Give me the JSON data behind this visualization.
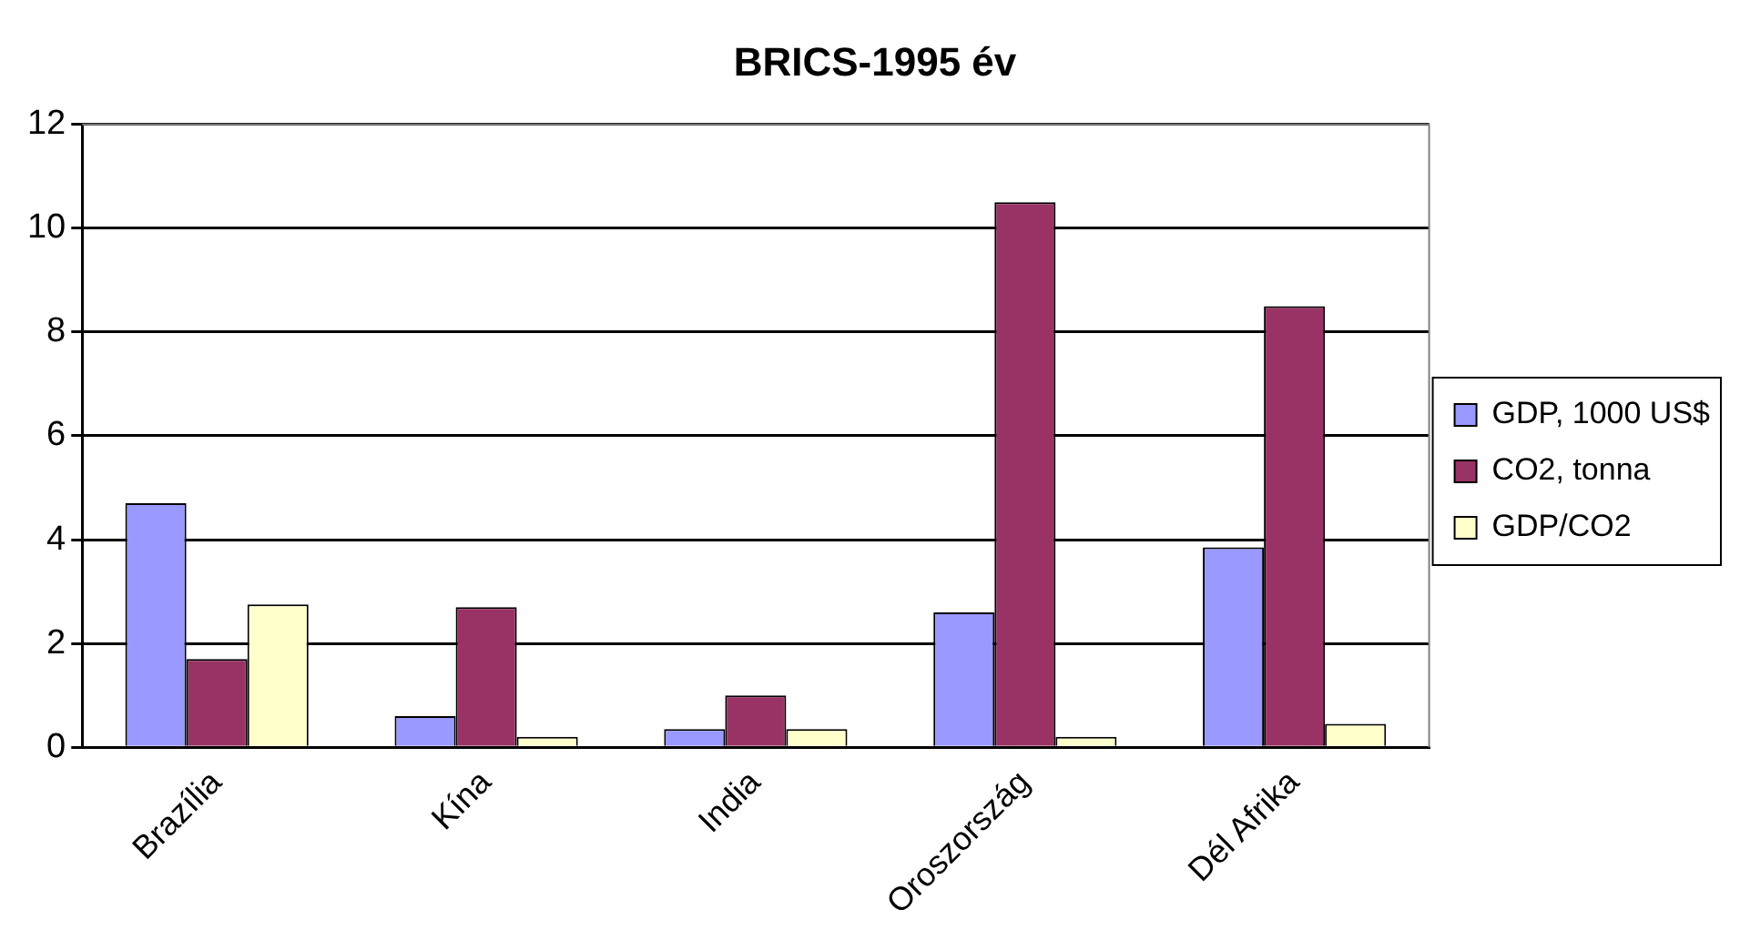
{
  "chart_data": {
    "type": "bar",
    "title": "BRICS-1995 év",
    "categories": [
      "Brazília",
      "Kína",
      "India",
      "Oroszország",
      "Dél Afrika"
    ],
    "series": [
      {
        "name": "GDP, 1000 US$",
        "color": "#9999ff",
        "values": [
          4.7,
          0.6,
          0.35,
          2.6,
          3.85
        ]
      },
      {
        "name": "CO2, tonna",
        "color": "#993366",
        "values": [
          1.7,
          2.7,
          1.0,
          10.5,
          8.5
        ]
      },
      {
        "name": "GDP/CO2",
        "color": "#ffffcc",
        "values": [
          2.75,
          0.2,
          0.35,
          0.2,
          0.45
        ]
      }
    ],
    "ylim": [
      0,
      12
    ],
    "yticks": [
      0,
      2,
      4,
      6,
      8,
      10,
      12
    ],
    "grid": "y",
    "legend": "right"
  }
}
